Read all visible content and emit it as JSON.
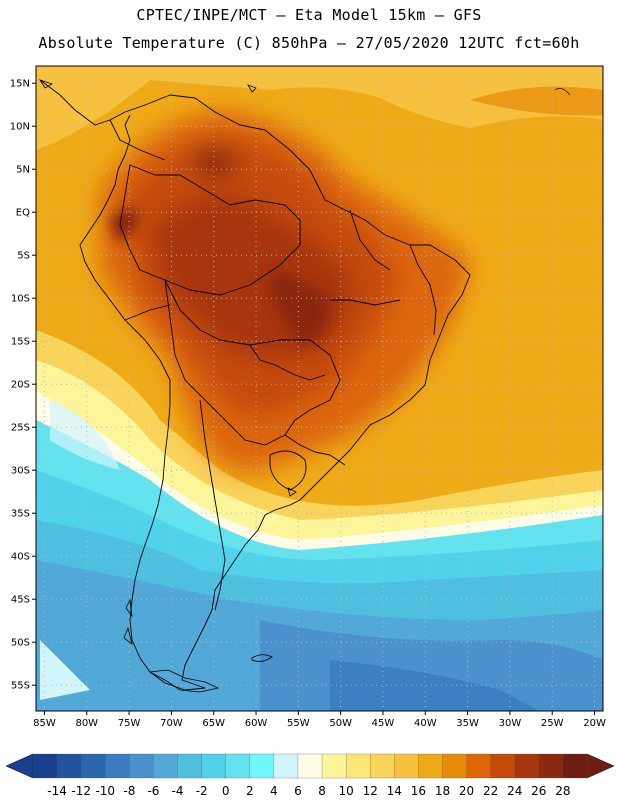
{
  "header": {
    "line1": "CPTEC/INPE/MCT –  Eta Model 15km – GFS",
    "line2": "Absolute Temperature (C) 850hPa – 27/05/2020 12UTC fct=60h"
  },
  "map": {
    "lon_range": [
      -86,
      -19
    ],
    "lat_range": [
      -58,
      17
    ],
    "lat_ticks": [
      "15N",
      "10N",
      "5N",
      "EQ",
      "5S",
      "10S",
      "15S",
      "20S",
      "25S",
      "30S",
      "35S",
      "40S",
      "45S",
      "50S",
      "55S"
    ],
    "lat_values": [
      15,
      10,
      5,
      0,
      -5,
      -10,
      -15,
      -20,
      -25,
      -30,
      -35,
      -40,
      -45,
      -50,
      -55
    ],
    "lon_ticks": [
      "85W",
      "80W",
      "75W",
      "70W",
      "65W",
      "60W",
      "55W",
      "50W",
      "45W",
      "40W",
      "35W",
      "30W",
      "25W",
      "20W"
    ],
    "lon_values": [
      -85,
      -80,
      -75,
      -70,
      -65,
      -60,
      -55,
      -50,
      -45,
      -40,
      -35,
      -30,
      -25,
      -20
    ]
  },
  "colorbar": {
    "labels": [
      "-14",
      "-12",
      "-10",
      "-8",
      "-6",
      "-4",
      "-2",
      "0",
      "2",
      "4",
      "6",
      "8",
      "10",
      "12",
      "14",
      "16",
      "18",
      "20",
      "22",
      "24",
      "26",
      "28"
    ],
    "colors": [
      "#1a3f8f",
      "#22539f",
      "#2a67ae",
      "#3a7cbf",
      "#4a91ce",
      "#52a9d8",
      "#4fbfe0",
      "#50d3ea",
      "#63e3ef",
      "#6ff7fb",
      "#d2f4fb",
      "#fefbe6",
      "#fdf59a",
      "#fde576",
      "#f9d45a",
      "#f5c13f",
      "#efaa17",
      "#e68c0a",
      "#dc6608",
      "#c54b0a",
      "#a8360c",
      "#8a2810",
      "#6e1d14"
    ]
  }
}
